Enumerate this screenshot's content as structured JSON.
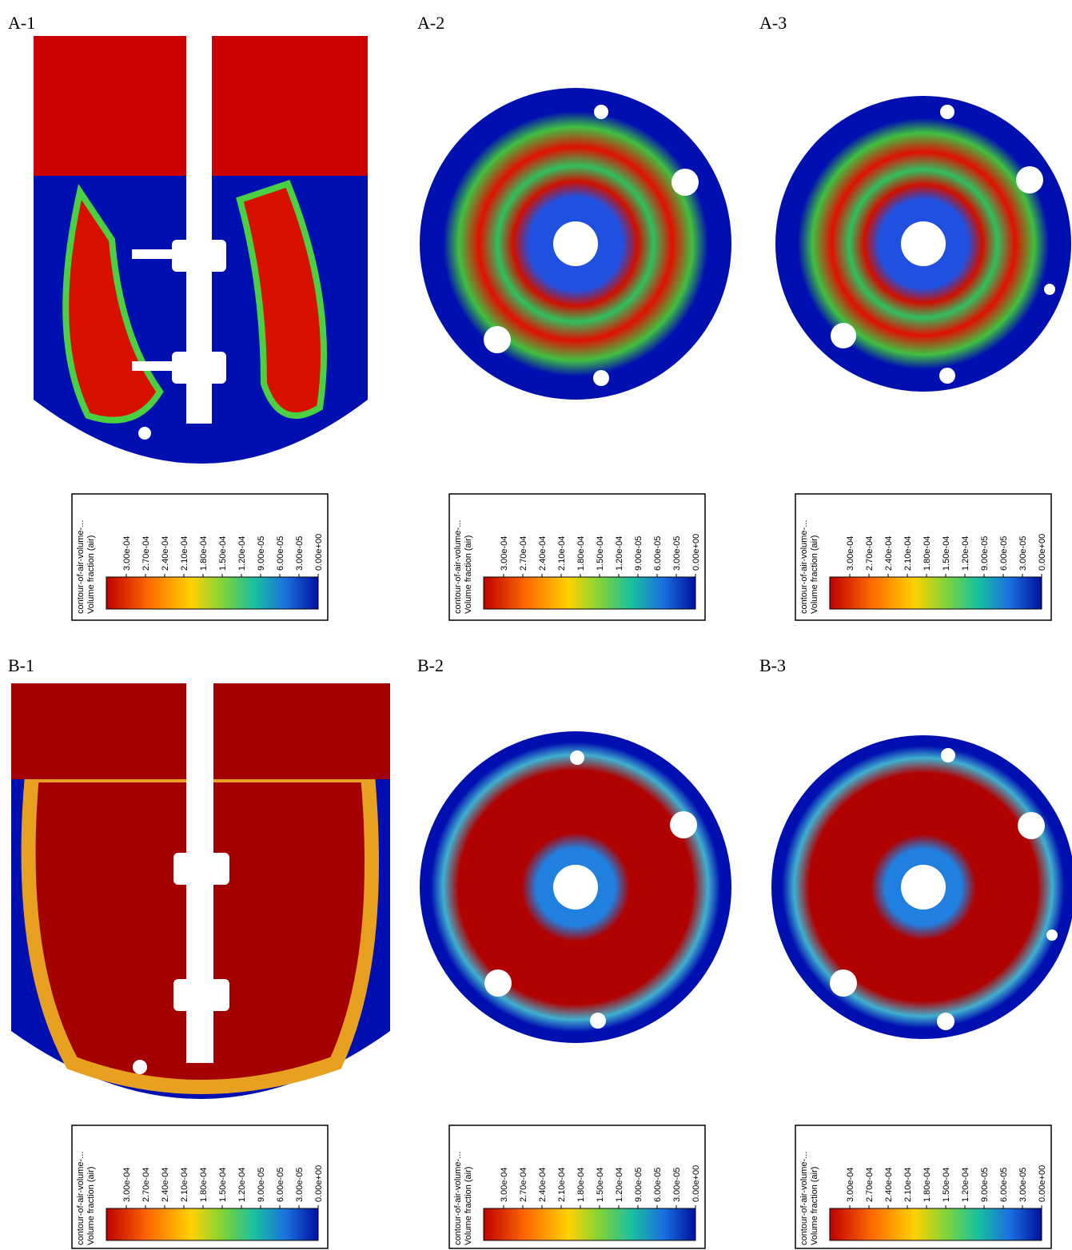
{
  "panels": [
    {
      "label": "A-1",
      "legend": {
        "title": "contour-of-air-volume-...",
        "subtitle": "Volume fraction (air)",
        "ticks": [
          "3.00e-04",
          "2.70e-04",
          "2.40e-04",
          "2.10e-04",
          "1.80e-04",
          "1.50e-04",
          "1.20e-04",
          "9.00e-05",
          "6.00e-05",
          "3.00e-05",
          "0.00e+00"
        ]
      }
    },
    {
      "label": "A-2",
      "legend": {
        "title": "contour-of-air-volume-...",
        "subtitle": "Volume fraction (air)",
        "ticks": [
          "3.00e-04",
          "2.70e-04",
          "2.40e-04",
          "2.10e-04",
          "1.80e-04",
          "1.50e-04",
          "1.20e-04",
          "9.00e-05",
          "6.00e-05",
          "3.00e-05",
          "0.00e+00"
        ]
      }
    },
    {
      "label": "A-3",
      "legend": {
        "title": "contour-of-air-volume-...",
        "subtitle": "Volume fraction (air)",
        "ticks": [
          "3.00e-04",
          "2.70e-04",
          "2.40e-04",
          "2.10e-04",
          "1.80e-04",
          "1.50e-04",
          "1.20e-04",
          "9.00e-05",
          "6.00e-05",
          "3.00e-05",
          "0.00e+00"
        ]
      }
    },
    {
      "label": "B-1",
      "legend": {
        "title": "contour-of-air-volume-...",
        "subtitle": "Volume fraction (air)",
        "ticks": [
          "3.00e-04",
          "2.70e-04",
          "2.40e-04",
          "2.10e-04",
          "1.80e-04",
          "1.50e-04",
          "1.20e-04",
          "9.00e-05",
          "6.00e-05",
          "3.00e-05",
          "0.00e+00"
        ]
      }
    },
    {
      "label": "B-2",
      "legend": {
        "title": "contour-of-air-volume-...",
        "subtitle": "Volume fraction (air)",
        "ticks": [
          "3.00e-04",
          "2.70e-04",
          "2.40e-04",
          "2.10e-04",
          "1.80e-04",
          "1.50e-04",
          "1.20e-04",
          "9.00e-05",
          "6.00e-05",
          "3.00e-05",
          "0.00e+00"
        ]
      }
    },
    {
      "label": "B-3",
      "legend": {
        "title": "contour-of-air-volume-...",
        "subtitle": "Volume fraction (air)",
        "ticks": [
          "3.00e-04",
          "2.70e-04",
          "2.40e-04",
          "2.10e-04",
          "1.80e-04",
          "1.50e-04",
          "1.20e-04",
          "9.00e-05",
          "6.00e-05",
          "3.00e-05",
          "0.00e+00"
        ]
      }
    }
  ]
}
